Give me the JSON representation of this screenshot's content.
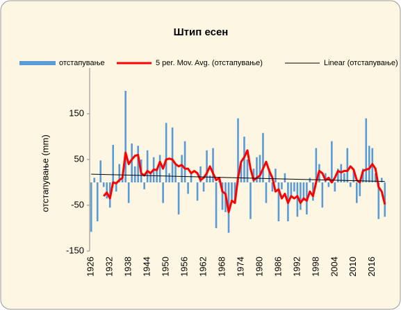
{
  "chart_data": {
    "type": "bar-line",
    "title": "Штип есен",
    "ylabel": "отстапување (mm)",
    "x": [
      1926,
      1927,
      1928,
      1929,
      1930,
      1931,
      1932,
      1933,
      1934,
      1935,
      1936,
      1937,
      1938,
      1939,
      1940,
      1941,
      1942,
      1943,
      1944,
      1945,
      1946,
      1947,
      1948,
      1949,
      1950,
      1951,
      1952,
      1953,
      1954,
      1955,
      1956,
      1957,
      1958,
      1959,
      1960,
      1961,
      1962,
      1963,
      1964,
      1965,
      1966,
      1967,
      1968,
      1969,
      1970,
      1971,
      1972,
      1973,
      1974,
      1975,
      1976,
      1977,
      1978,
      1979,
      1980,
      1981,
      1982,
      1983,
      1984,
      1985,
      1986,
      1987,
      1988,
      1989,
      1990,
      1991,
      1992,
      1993,
      1994,
      1995,
      1996,
      1997,
      1998,
      1999,
      2000,
      2001,
      2002,
      2003,
      2004,
      2005,
      2006,
      2007,
      2008,
      2009,
      2010,
      2011,
      2012,
      2013,
      2014,
      2015,
      2016,
      2017,
      2018,
      2019,
      2020
    ],
    "series": [
      {
        "name": "отстапување",
        "kind": "bar",
        "color": "#5b9bd5",
        "values": [
          -108,
          10,
          -85,
          48,
          -10,
          -35,
          -55,
          82,
          -20,
          40,
          10,
          200,
          -45,
          85,
          35,
          80,
          50,
          -15,
          70,
          20,
          55,
          30,
          60,
          -45,
          130,
          20,
          120,
          40,
          -70,
          60,
          90,
          -25,
          20,
          0,
          -40,
          35,
          -20,
          70,
          15,
          75,
          -100,
          10,
          -60,
          -65,
          -110,
          -40,
          -45,
          140,
          40,
          100,
          50,
          -80,
          30,
          55,
          60,
          108,
          -45,
          30,
          -20,
          30,
          -85,
          -15,
          20,
          -85,
          -30,
          -20,
          -75,
          -60,
          -40,
          -70,
          10,
          -40,
          75,
          40,
          -55,
          20,
          -10,
          90,
          -20,
          30,
          40,
          20,
          75,
          -10,
          25,
          -45,
          -30,
          30,
          140,
          80,
          75,
          20,
          -80,
          10,
          -75
        ]
      },
      {
        "name": "5 per. Mov. Avg. (отстапување)",
        "kind": "line",
        "color": "#ff0000",
        "values": [
          null,
          null,
          null,
          null,
          -30,
          -22,
          -35,
          0,
          -2,
          5,
          10,
          65,
          40,
          50,
          58,
          60,
          20,
          15,
          25,
          20,
          28,
          27,
          45,
          30,
          50,
          52,
          50,
          40,
          35,
          38,
          30,
          30,
          20,
          25,
          20,
          5,
          10,
          20,
          35,
          20,
          5,
          10,
          -20,
          -25,
          -65,
          -40,
          -45,
          10,
          45,
          55,
          70,
          30,
          5,
          10,
          15,
          30,
          45,
          25,
          10,
          -20,
          -15,
          -35,
          -25,
          -45,
          -30,
          -35,
          -30,
          -45,
          -35,
          -40,
          -20,
          -30,
          0,
          25,
          20,
          5,
          10,
          0,
          10,
          25,
          22,
          25,
          25,
          35,
          28,
          5,
          0,
          25,
          28,
          30,
          40,
          30,
          -10,
          -20,
          -48
        ]
      }
    ],
    "trend": {
      "name": "Linear (отстапување)",
      "color": "#000000",
      "start": 18,
      "end": 2
    },
    "xlim": [
      1925.5,
      2020.5
    ],
    "xticks": [
      1926,
      1932,
      1938,
      1944,
      1950,
      1956,
      1962,
      1968,
      1974,
      1980,
      1986,
      1992,
      1998,
      2004,
      2010,
      2016
    ],
    "ylim": [
      -150,
      250
    ],
    "yticks": [
      -150,
      -50,
      50,
      150
    ]
  }
}
